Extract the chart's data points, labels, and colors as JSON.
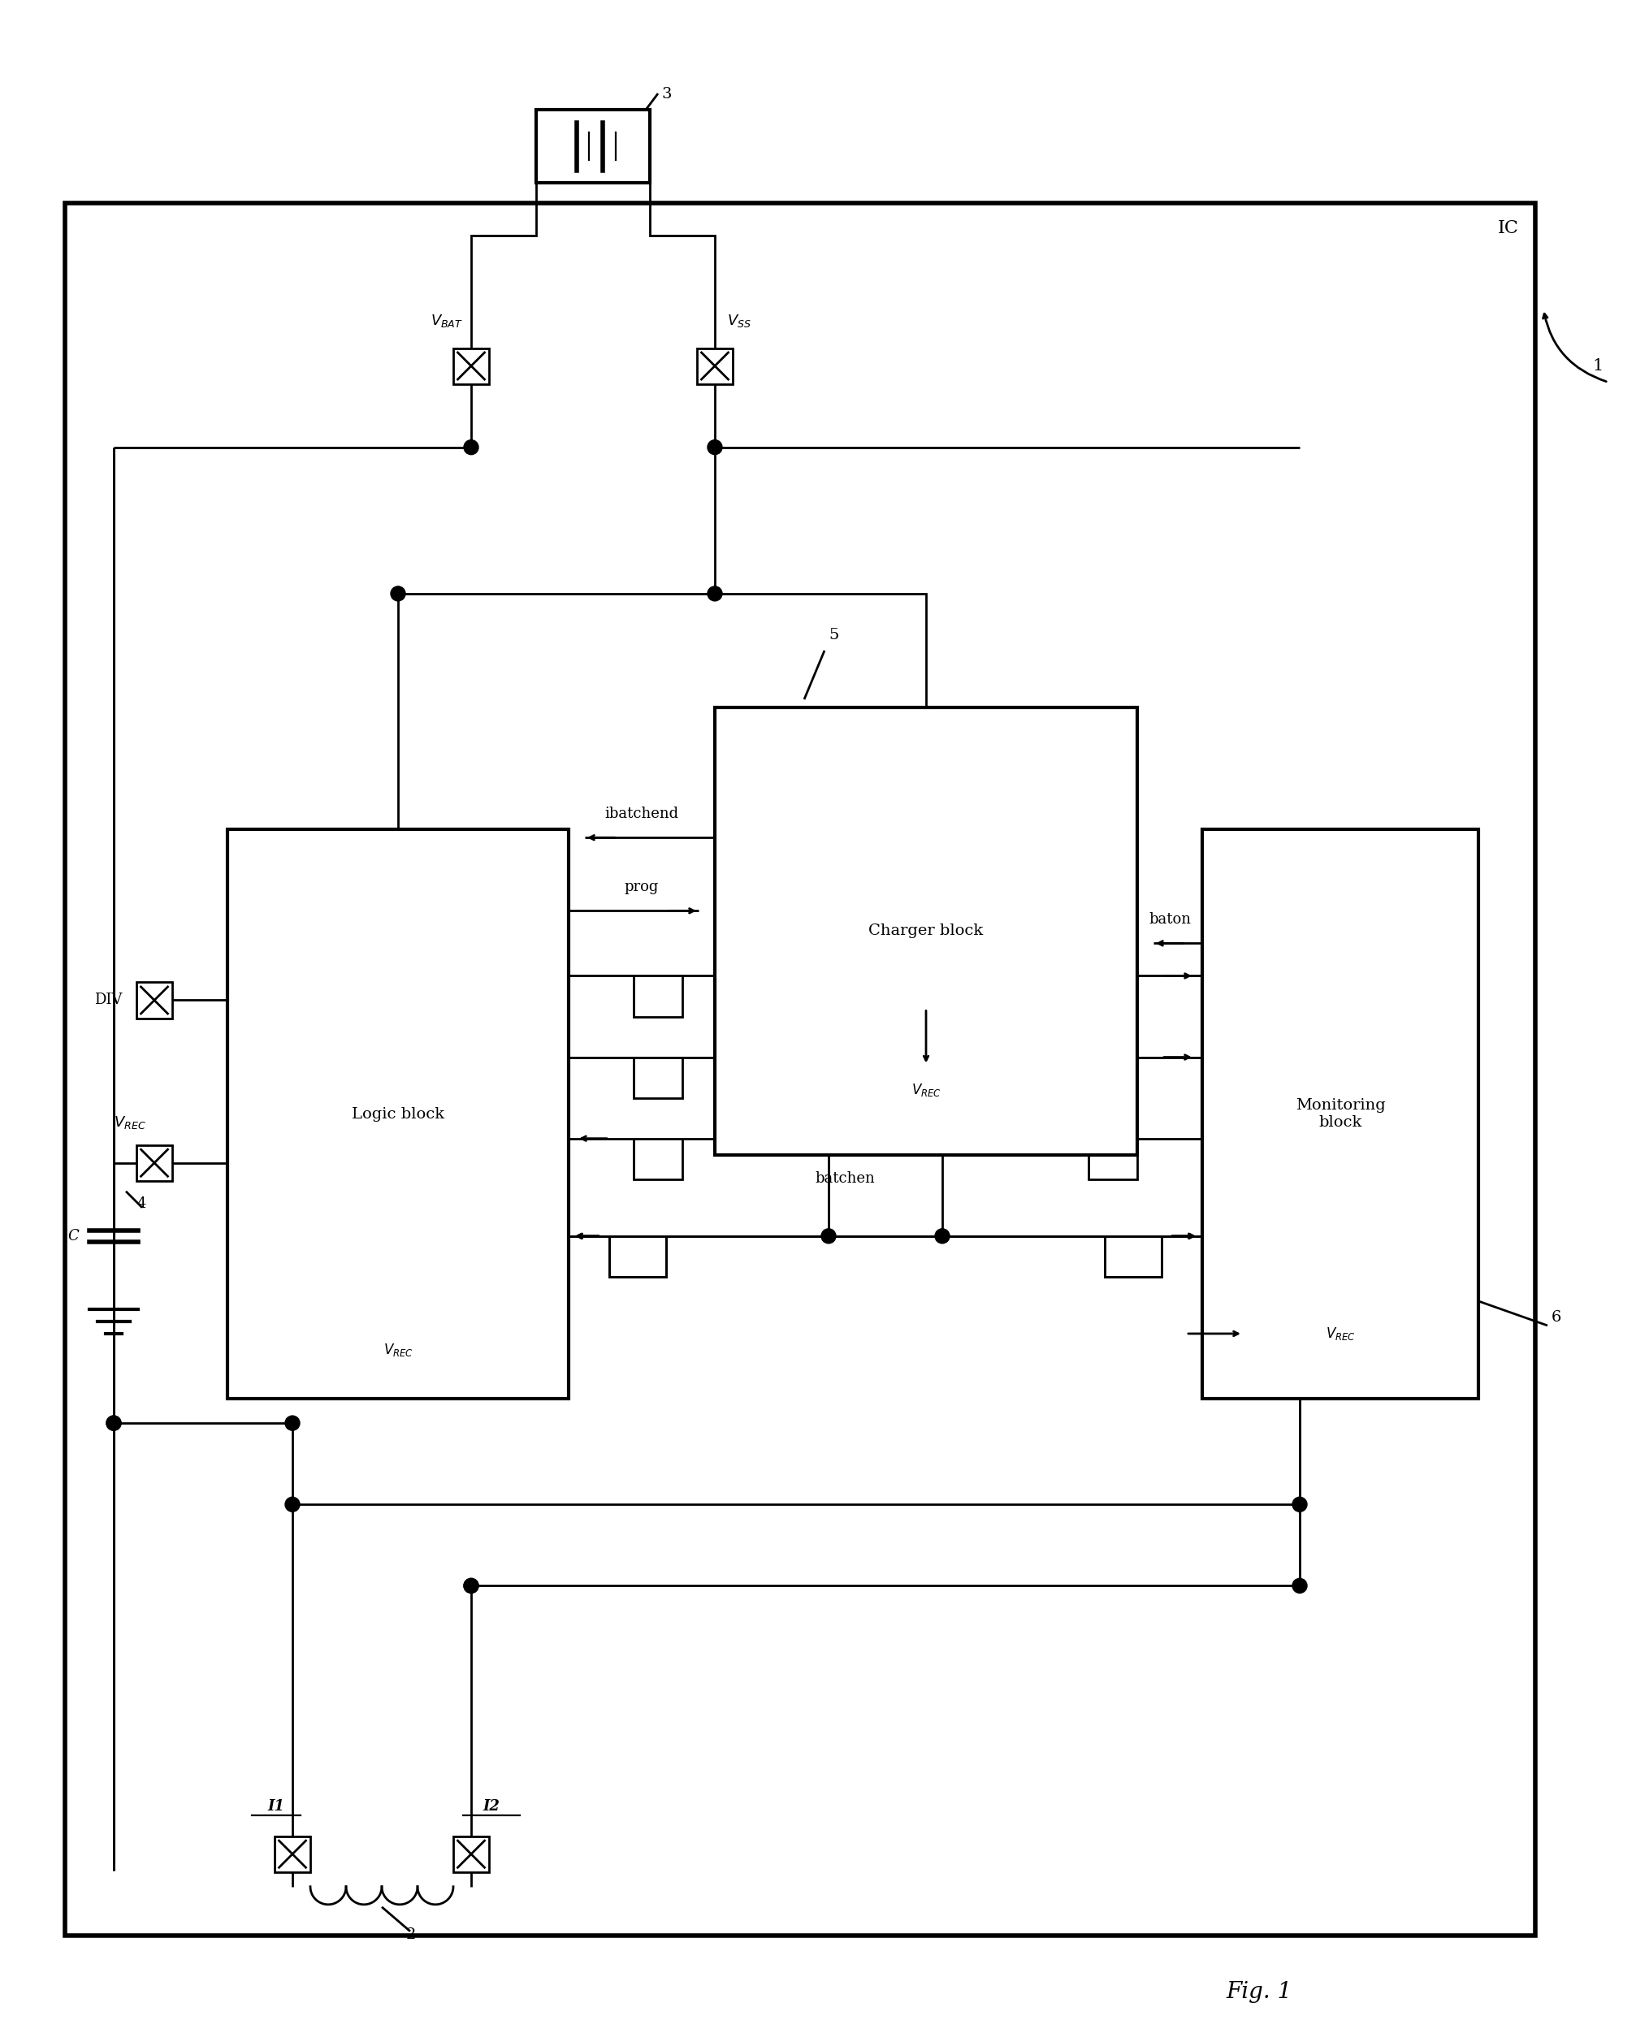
{
  "bg_color": "#ffffff",
  "lc": "#000000",
  "fig_width": 20.3,
  "fig_height": 25.03,
  "lw": 2.0,
  "fs": 13,
  "ic_label": "IC",
  "label_1": "1",
  "label_2": "2",
  "label_3": "3",
  "label_4": "4",
  "label_5": "5",
  "label_6": "6",
  "logic_block_label": "Logic block",
  "charger_block_label": "Charger block",
  "monitoring_block_label": "Monitoring\nblock",
  "vbat_label": "$V_{BAT}$",
  "vss_label": "$V_{SS}$",
  "vrec_label": "$V_{REC}$",
  "div_label": "DIV",
  "prog_label": "prog",
  "ibatchend_label": "ibatchend",
  "baton_label": "baton",
  "batchen_label": "batchen",
  "i1_label": "I1",
  "i2_label": "I2",
  "C_label": "C",
  "fig_label": "Fig. 1"
}
